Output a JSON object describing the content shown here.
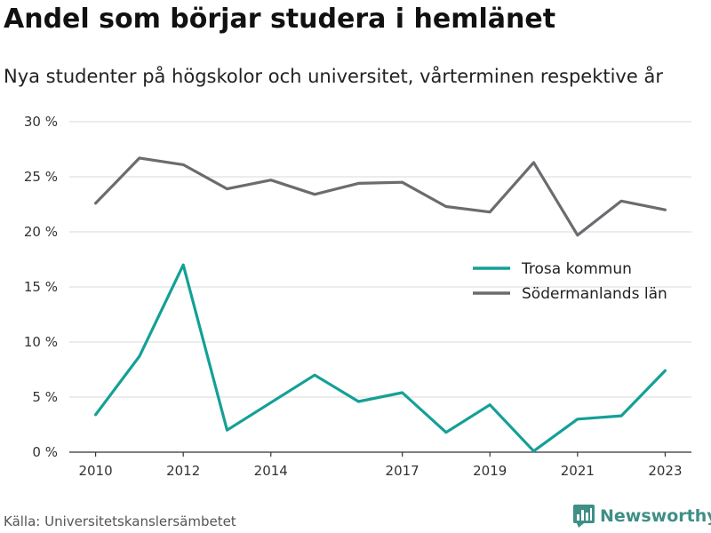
{
  "header": {
    "title": "Andel som börjar studera i hemlänet",
    "subtitle": "Nya studenter på högskolor och universitet, vårterminen respektive år"
  },
  "footer": {
    "source": "Källa: Universitetskanslersämbetet",
    "brand": "Newsworthy",
    "brand_icon": "bar-chart-logo-icon",
    "brand_color": "#3f8f86"
  },
  "chart_data": {
    "type": "line",
    "title": "Andel som börjar studera i hemlänet",
    "subtitle": "Nya studenter på högskolor och universitet, vårterminen respektive år",
    "xlabel": "",
    "ylabel": "",
    "x": [
      2010,
      2011,
      2012,
      2013,
      2014,
      2015,
      2016,
      2017,
      2018,
      2019,
      2020,
      2021,
      2022,
      2023
    ],
    "xticks": [
      2010,
      2012,
      2014,
      2017,
      2019,
      2021,
      2023
    ],
    "xlim": [
      2009.4,
      2023.6
    ],
    "ylim": [
      0,
      30
    ],
    "yticks": [
      0,
      5,
      10,
      15,
      20,
      25,
      30
    ],
    "ytick_labels": [
      "0 %",
      "5 %",
      "10 %",
      "15 %",
      "20 %",
      "25 %",
      "30 %"
    ],
    "grid": "horizontal",
    "legend_position": "right",
    "series": [
      {
        "name": "Trosa kommun",
        "color": "#14a096",
        "values": [
          3.4,
          8.7,
          17.0,
          2.0,
          4.5,
          7.0,
          4.6,
          5.4,
          1.8,
          4.3,
          0.1,
          3.0,
          3.3,
          7.4
        ]
      },
      {
        "name": "Södermanlands län",
        "color": "#6b6b70",
        "values": [
          22.6,
          26.7,
          26.1,
          23.9,
          24.7,
          23.4,
          24.4,
          24.5,
          22.3,
          21.8,
          26.3,
          19.7,
          22.8,
          22.0
        ]
      }
    ]
  }
}
